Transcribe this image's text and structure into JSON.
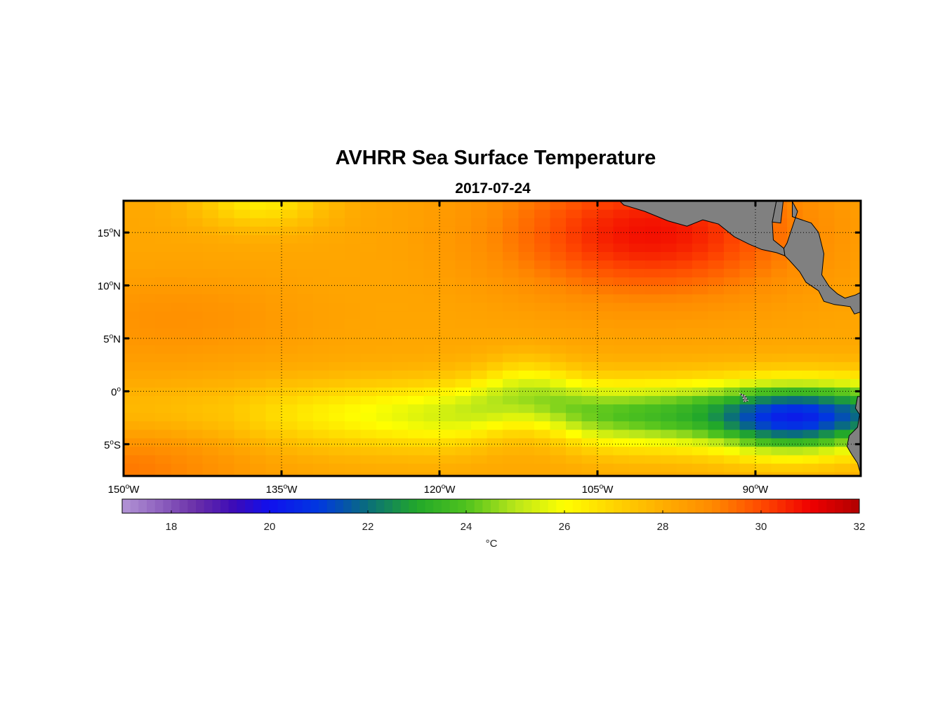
{
  "chart_data": {
    "type": "heatmap",
    "title": "AVHRR Sea Surface Temperature",
    "subtitle": "2017-07-24",
    "colorbar": {
      "label": "°C",
      "range": [
        17,
        32
      ],
      "ticks": [
        "18",
        "20",
        "22",
        "24",
        "26",
        "28",
        "30",
        "32"
      ],
      "tick_values": [
        18,
        20,
        22,
        24,
        26,
        28,
        30,
        32
      ]
    },
    "lon_range": [
      -150,
      -80
    ],
    "lat_range": [
      -8,
      18
    ],
    "lon_ticks": [
      {
        "value": -150,
        "deg": "150",
        "hem": "W"
      },
      {
        "value": -135,
        "deg": "135",
        "hem": "W"
      },
      {
        "value": -120,
        "deg": "120",
        "hem": "W"
      },
      {
        "value": -105,
        "deg": "105",
        "hem": "W"
      },
      {
        "value": -90,
        "deg": "90",
        "hem": "W"
      }
    ],
    "lat_ticks": [
      {
        "value": 15,
        "deg": "15",
        "hem": "N"
      },
      {
        "value": 10,
        "deg": "10",
        "hem": "N"
      },
      {
        "value": 5,
        "deg": "5",
        "hem": "N"
      },
      {
        "value": 0,
        "deg": "0",
        "hem": ""
      },
      {
        "value": -5,
        "deg": "5",
        "hem": "S"
      }
    ],
    "grid": "dotted",
    "land_color": "#808080",
    "colormap": [
      {
        "t": 17.0,
        "c": "#b395d6"
      },
      {
        "t": 18.5,
        "c": "#6a2fa8"
      },
      {
        "t": 19.3,
        "c": "#3b0ab8"
      },
      {
        "t": 20.0,
        "c": "#1010ee"
      },
      {
        "t": 21.0,
        "c": "#0038e0"
      },
      {
        "t": 22.0,
        "c": "#0a6e7a"
      },
      {
        "t": 23.0,
        "c": "#22a82a"
      },
      {
        "t": 24.0,
        "c": "#4fc21e"
      },
      {
        "t": 25.0,
        "c": "#b8e61a"
      },
      {
        "t": 26.0,
        "c": "#ffff00"
      },
      {
        "t": 27.0,
        "c": "#ffd400"
      },
      {
        "t": 28.0,
        "c": "#ffae00"
      },
      {
        "t": 29.0,
        "c": "#ff8a00"
      },
      {
        "t": 30.0,
        "c": "#ff4a00"
      },
      {
        "t": 31.0,
        "c": "#f00000"
      },
      {
        "t": 32.0,
        "c": "#b00000"
      }
    ]
  }
}
